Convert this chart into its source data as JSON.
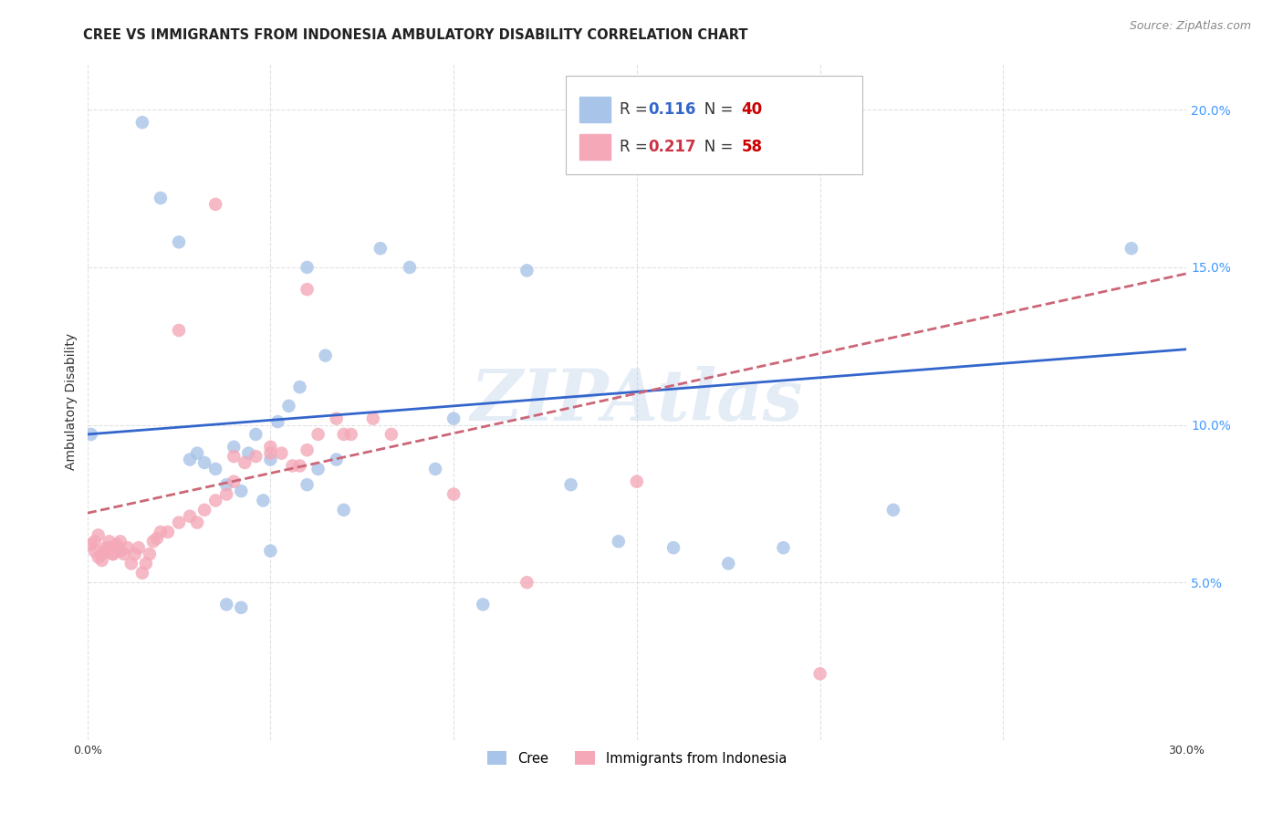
{
  "title": "CREE VS IMMIGRANTS FROM INDONESIA AMBULATORY DISABILITY CORRELATION CHART",
  "source": "Source: ZipAtlas.com",
  "ylabel": "Ambulatory Disability",
  "xlim": [
    0,
    0.3
  ],
  "ylim": [
    0,
    0.215
  ],
  "r_blue": "0.116",
  "n_blue": "40",
  "r_pink": "0.217",
  "n_pink": "58",
  "blue_color": "#a8c4e8",
  "pink_color": "#f4a8b8",
  "blue_line_color": "#3366cc",
  "pink_line_color": "#cc6677",
  "blue_text_color": "#3366cc",
  "pink_text_color": "#cc3344",
  "n_text_color": "#cc0000",
  "watermark": "ZIPAtlas",
  "background_color": "#ffffff",
  "grid_color": "#dddddd",
  "tick_color": "#4499ff",
  "title_fontsize": 10.5,
  "axis_fontsize": 9,
  "source_fontsize": 9,
  "legend_fontsize": 12,
  "cree_x": [
    0.001,
    0.015,
    0.02,
    0.025,
    0.028,
    0.03,
    0.032,
    0.035,
    0.038,
    0.04,
    0.042,
    0.044,
    0.046,
    0.048,
    0.05,
    0.052,
    0.055,
    0.058,
    0.06,
    0.063,
    0.065,
    0.068,
    0.07,
    0.08,
    0.088,
    0.095,
    0.1,
    0.108,
    0.12,
    0.132,
    0.145,
    0.16,
    0.175,
    0.19,
    0.22,
    0.285,
    0.038,
    0.042,
    0.05,
    0.06
  ],
  "cree_y": [
    0.097,
    0.196,
    0.172,
    0.158,
    0.089,
    0.091,
    0.088,
    0.086,
    0.081,
    0.093,
    0.079,
    0.091,
    0.097,
    0.076,
    0.089,
    0.101,
    0.106,
    0.112,
    0.081,
    0.086,
    0.122,
    0.089,
    0.073,
    0.156,
    0.15,
    0.086,
    0.102,
    0.043,
    0.149,
    0.081,
    0.063,
    0.061,
    0.056,
    0.061,
    0.073,
    0.156,
    0.043,
    0.042,
    0.06,
    0.15
  ],
  "indonesia_x": [
    0.001,
    0.002,
    0.003,
    0.004,
    0.005,
    0.006,
    0.007,
    0.008,
    0.009,
    0.01,
    0.011,
    0.012,
    0.013,
    0.014,
    0.015,
    0.016,
    0.017,
    0.018,
    0.019,
    0.02,
    0.022,
    0.025,
    0.028,
    0.03,
    0.032,
    0.035,
    0.038,
    0.04,
    0.043,
    0.046,
    0.05,
    0.053,
    0.056,
    0.058,
    0.06,
    0.063,
    0.068,
    0.072,
    0.078,
    0.083,
    0.002,
    0.003,
    0.004,
    0.005,
    0.006,
    0.007,
    0.008,
    0.009,
    0.025,
    0.035,
    0.04,
    0.05,
    0.06,
    0.07,
    0.1,
    0.12,
    0.15,
    0.2
  ],
  "indonesia_y": [
    0.062,
    0.063,
    0.065,
    0.059,
    0.061,
    0.063,
    0.059,
    0.061,
    0.063,
    0.059,
    0.061,
    0.056,
    0.059,
    0.061,
    0.053,
    0.056,
    0.059,
    0.063,
    0.064,
    0.066,
    0.066,
    0.069,
    0.071,
    0.069,
    0.073,
    0.076,
    0.078,
    0.082,
    0.088,
    0.09,
    0.093,
    0.091,
    0.087,
    0.087,
    0.092,
    0.097,
    0.102,
    0.097,
    0.102,
    0.097,
    0.06,
    0.058,
    0.057,
    0.06,
    0.061,
    0.059,
    0.062,
    0.06,
    0.13,
    0.17,
    0.09,
    0.091,
    0.143,
    0.097,
    0.078,
    0.05,
    0.082,
    0.021
  ],
  "blue_trend": [
    0.097,
    0.124
  ],
  "pink_trend_start": 0.072,
  "pink_trend_end": 0.148
}
